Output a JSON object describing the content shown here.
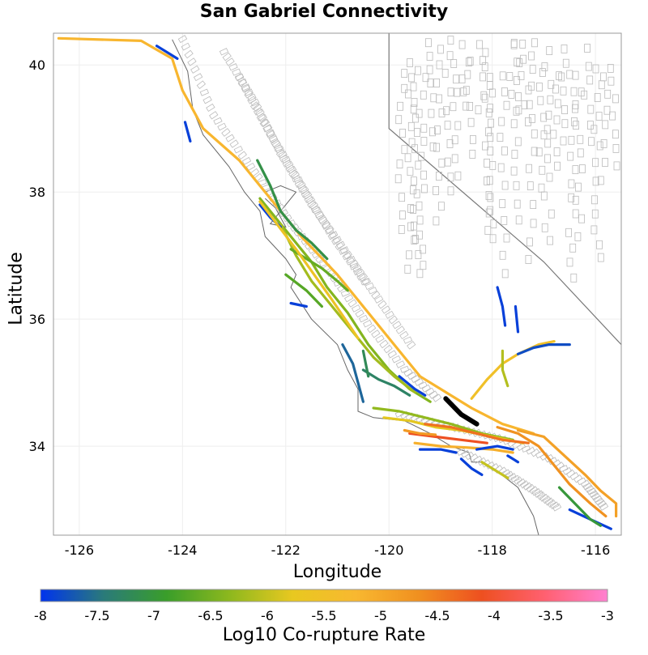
{
  "title": "San Gabriel Connectivity",
  "xlabel": "Longitude",
  "ylabel": "Latitude",
  "colorbar_label": "Log10 Co-rupture Rate",
  "colors": {
    "colorscale": [
      "#0033ee",
      "#2a7a7a",
      "#3a9e2a",
      "#8db81e",
      "#e8c820",
      "#f8b830",
      "#f09020",
      "#ee5020",
      "#ff6070",
      "#ff80d0"
    ],
    "state_border": "#777777",
    "fault_outline": "#bbbbbb",
    "coastline": "#666666",
    "source_fault": "#000000"
  },
  "chart_data": {
    "type": "map",
    "title": "San Gabriel Connectivity",
    "xlabel": "Longitude",
    "ylabel": "Latitude",
    "xlim": [
      -126.5,
      -115.5
    ],
    "ylim": [
      32.6,
      40.5
    ],
    "xticks": [
      -126,
      -124,
      -122,
      -120,
      -118,
      -116
    ],
    "yticks": [
      34,
      36,
      38,
      40
    ],
    "grid": true,
    "colorbar": {
      "label": "Log10 Co-rupture Rate",
      "min": -8,
      "max": -3,
      "ticks": [
        "-8",
        "-7.5",
        "-7",
        "-6.5",
        "-6",
        "-5.5",
        "-5",
        "-4.5",
        "-4",
        "-3.5",
        "-3"
      ]
    },
    "source_fault": {
      "name": "",
      "path": [
        [
          -118.9,
          34.75
        ],
        [
          -118.6,
          34.5
        ],
        [
          -118.3,
          34.35
        ]
      ]
    },
    "faults": [
      {
        "v": -5.2,
        "path": [
          [
            -126.4,
            40.42
          ],
          [
            -124.8,
            40.38
          ],
          [
            -124.2,
            40.1
          ],
          [
            -124.0,
            39.6
          ],
          [
            -123.6,
            39.0
          ],
          [
            -122.9,
            38.5
          ],
          [
            -122.3,
            37.9
          ],
          [
            -121.7,
            37.3
          ],
          [
            -121.0,
            36.7
          ],
          [
            -120.4,
            36.1
          ],
          [
            -119.9,
            35.6
          ],
          [
            -119.4,
            35.1
          ],
          [
            -118.9,
            34.85
          ],
          [
            -118.4,
            34.6
          ],
          [
            -117.8,
            34.35
          ],
          [
            -117.2,
            34.2
          ]
        ]
      },
      {
        "v": -6.4,
        "path": [
          [
            -122.5,
            37.9
          ],
          [
            -122.2,
            37.6
          ],
          [
            -121.8,
            37.2
          ],
          [
            -121.5,
            36.9
          ],
          [
            -121.2,
            36.5
          ],
          [
            -120.8,
            36.1
          ],
          [
            -120.4,
            35.6
          ],
          [
            -120.0,
            35.2
          ],
          [
            -119.6,
            34.9
          ],
          [
            -119.2,
            34.7
          ]
        ]
      },
      {
        "v": -6.2,
        "path": [
          [
            -122.1,
            37.5
          ],
          [
            -121.8,
            37.0
          ],
          [
            -121.5,
            36.6
          ],
          [
            -121.1,
            36.2
          ],
          [
            -120.7,
            35.8
          ],
          [
            -120.3,
            35.4
          ],
          [
            -119.9,
            35.1
          ],
          [
            -119.5,
            34.85
          ]
        ]
      },
      {
        "v": -7.1,
        "path": [
          [
            -122.55,
            38.5
          ],
          [
            -122.3,
            38.1
          ],
          [
            -122.1,
            37.7
          ],
          [
            -121.8,
            37.4
          ],
          [
            -121.5,
            37.2
          ],
          [
            -121.2,
            36.95
          ]
        ]
      },
      {
        "v": -6.6,
        "path": [
          [
            -121.9,
            37.1
          ],
          [
            -121.6,
            36.95
          ],
          [
            -121.3,
            36.8
          ],
          [
            -121.0,
            36.6
          ],
          [
            -120.8,
            36.45
          ]
        ]
      },
      {
        "v": -7.6,
        "path": [
          [
            -120.9,
            35.6
          ],
          [
            -120.7,
            35.3
          ],
          [
            -120.6,
            35.0
          ],
          [
            -120.5,
            34.7
          ]
        ]
      },
      {
        "v": -7.3,
        "path": [
          [
            -120.5,
            35.2
          ],
          [
            -120.2,
            35.05
          ],
          [
            -119.9,
            34.95
          ],
          [
            -119.6,
            34.8
          ]
        ]
      },
      {
        "v": -6.3,
        "path": [
          [
            -120.3,
            34.6
          ],
          [
            -119.8,
            34.55
          ],
          [
            -119.3,
            34.45
          ],
          [
            -118.8,
            34.35
          ],
          [
            -118.2,
            34.2
          ],
          [
            -117.6,
            34.1
          ]
        ]
      },
      {
        "v": -5.8,
        "path": [
          [
            -120.1,
            34.45
          ],
          [
            -119.6,
            34.4
          ],
          [
            -119.1,
            34.3
          ],
          [
            -118.6,
            34.25
          ],
          [
            -118.0,
            34.15
          ],
          [
            -117.4,
            34.05
          ]
        ]
      },
      {
        "v": -4.4,
        "path": [
          [
            -119.3,
            34.35
          ],
          [
            -118.8,
            34.3
          ],
          [
            -118.3,
            34.2
          ],
          [
            -117.8,
            34.1
          ],
          [
            -117.3,
            34.05
          ]
        ]
      },
      {
        "v": -4.1,
        "path": [
          [
            -119.6,
            34.2
          ],
          [
            -119.1,
            34.15
          ],
          [
            -118.6,
            34.1
          ],
          [
            -118.1,
            34.05
          ]
        ]
      },
      {
        "v": -5.1,
        "path": [
          [
            -119.5,
            34.05
          ],
          [
            -119.0,
            34.0
          ],
          [
            -118.5,
            33.98
          ],
          [
            -118.0,
            33.95
          ],
          [
            -117.6,
            33.9
          ]
        ]
      },
      {
        "v": -4.7,
        "path": [
          [
            -117.9,
            34.3
          ],
          [
            -117.5,
            34.2
          ],
          [
            -117.1,
            34.0
          ],
          [
            -116.8,
            33.7
          ],
          [
            -116.5,
            33.4
          ],
          [
            -116.1,
            33.1
          ],
          [
            -115.8,
            32.9
          ]
        ]
      },
      {
        "v": -4.9,
        "path": [
          [
            -117.5,
            34.25
          ],
          [
            -117.0,
            34.15
          ],
          [
            -116.6,
            33.85
          ],
          [
            -116.2,
            33.55
          ],
          [
            -115.9,
            33.3
          ],
          [
            -115.6,
            33.1
          ],
          [
            -115.6,
            32.9
          ]
        ]
      },
      {
        "v": -5.5,
        "path": [
          [
            -118.4,
            34.75
          ],
          [
            -118.1,
            35.05
          ],
          [
            -117.8,
            35.3
          ],
          [
            -117.5,
            35.45
          ],
          [
            -117.1,
            35.6
          ],
          [
            -116.8,
            35.65
          ]
        ]
      },
      {
        "v": -7.8,
        "path": [
          [
            -117.5,
            35.45
          ],
          [
            -117.2,
            35.55
          ],
          [
            -116.9,
            35.6
          ],
          [
            -116.5,
            35.6
          ]
        ]
      },
      {
        "v": -6.1,
        "path": [
          [
            -117.8,
            35.5
          ],
          [
            -117.8,
            35.2
          ],
          [
            -117.7,
            34.95
          ]
        ]
      },
      {
        "v": -7.9,
        "path": [
          [
            -117.9,
            36.5
          ],
          [
            -117.8,
            36.2
          ],
          [
            -117.75,
            35.9
          ]
        ]
      },
      {
        "v": -7.9,
        "path": [
          [
            -117.55,
            36.2
          ],
          [
            -117.5,
            35.8
          ]
        ]
      },
      {
        "v": -7.9,
        "path": [
          [
            -122.5,
            37.8
          ],
          [
            -122.3,
            37.6
          ],
          [
            -122.1,
            37.45
          ]
        ]
      },
      {
        "v": -7.9,
        "path": [
          [
            -121.9,
            36.25
          ],
          [
            -121.6,
            36.2
          ]
        ]
      },
      {
        "v": -7.9,
        "path": [
          [
            -123.95,
            39.1
          ],
          [
            -123.85,
            38.8
          ]
        ]
      },
      {
        "v": -7.9,
        "path": [
          [
            -124.5,
            40.3
          ],
          [
            -124.1,
            40.1
          ]
        ]
      },
      {
        "v": -7.9,
        "path": [
          [
            -119.8,
            35.1
          ],
          [
            -119.5,
            34.9
          ],
          [
            -119.3,
            34.8
          ]
        ]
      },
      {
        "v": -7.9,
        "path": [
          [
            -119.4,
            33.95
          ],
          [
            -119.0,
            33.95
          ],
          [
            -118.7,
            33.9
          ]
        ]
      },
      {
        "v": -7.9,
        "path": [
          [
            -118.3,
            33.95
          ],
          [
            -117.9,
            34.0
          ],
          [
            -117.6,
            33.95
          ]
        ]
      },
      {
        "v": -7.9,
        "path": [
          [
            -118.6,
            33.8
          ],
          [
            -118.4,
            33.65
          ],
          [
            -118.2,
            33.55
          ]
        ]
      },
      {
        "v": -7.9,
        "path": [
          [
            -117.7,
            33.85
          ],
          [
            -117.5,
            33.75
          ]
        ]
      },
      {
        "v": -7.9,
        "path": [
          [
            -116.5,
            33.0
          ],
          [
            -116.1,
            32.85
          ],
          [
            -115.7,
            32.7
          ]
        ]
      },
      {
        "v": -7.0,
        "path": [
          [
            -116.7,
            33.35
          ],
          [
            -116.4,
            33.1
          ],
          [
            -116.1,
            32.85
          ],
          [
            -115.9,
            32.75
          ]
        ]
      },
      {
        "v": -6.0,
        "path": [
          [
            -118.2,
            33.75
          ],
          [
            -117.9,
            33.6
          ],
          [
            -117.7,
            33.5
          ]
        ]
      },
      {
        "v": -4.8,
        "path": [
          [
            -119.7,
            34.25
          ],
          [
            -119.4,
            34.2
          ],
          [
            -119.1,
            34.18
          ]
        ]
      },
      {
        "v": -5.6,
        "path": [
          [
            -122.5,
            37.85
          ],
          [
            -121.8,
            37.1
          ],
          [
            -121.1,
            36.3
          ],
          [
            -120.6,
            35.7
          ]
        ]
      },
      {
        "v": -7.2,
        "path": [
          [
            -120.5,
            35.5
          ],
          [
            -120.45,
            35.3
          ],
          [
            -120.4,
            35.1
          ]
        ]
      },
      {
        "v": -6.7,
        "path": [
          [
            -122.0,
            36.7
          ],
          [
            -121.6,
            36.45
          ],
          [
            -121.3,
            36.2
          ]
        ]
      }
    ]
  }
}
